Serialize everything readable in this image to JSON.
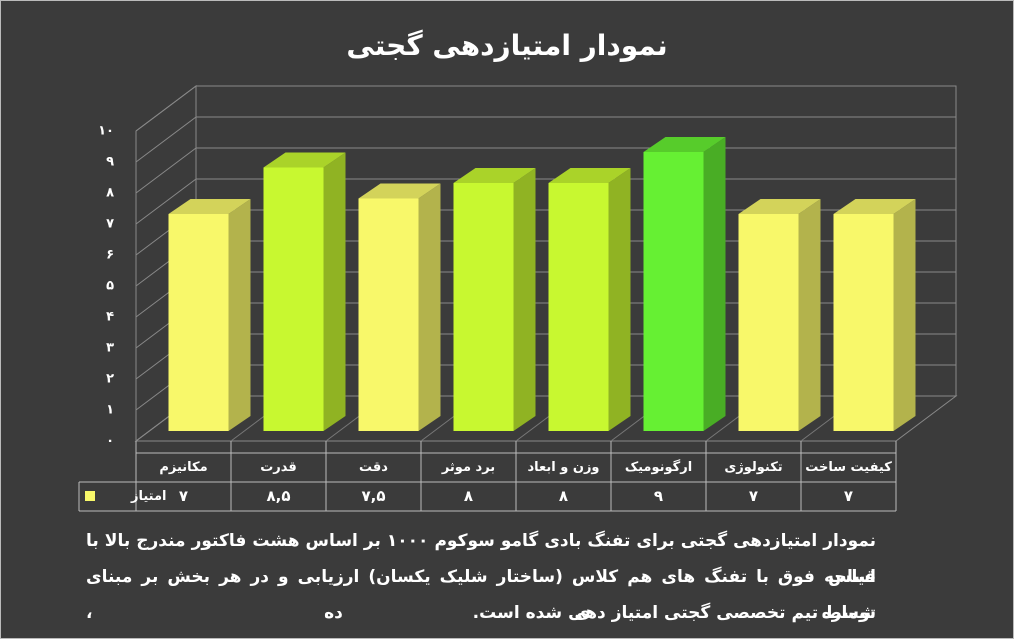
{
  "chart_data": {
    "type": "bar3d",
    "title": "نمودار امتیازدهی گجتی",
    "categories": [
      "مکانیزم",
      "قدرت",
      "دقت",
      "برد موثر",
      "وزن و ابعاد",
      "ارگونومیک",
      "تکنولوژی",
      "کیفیت ساخت"
    ],
    "series": [
      {
        "name": "امتیاز",
        "color": "#f8f86a",
        "values": [
          7,
          8.5,
          7.5,
          8,
          8,
          9,
          7,
          7
        ],
        "value_labels": [
          "۷",
          "۸,۵",
          "۷,۵",
          "۸",
          "۸",
          "۹",
          "۷",
          "۷"
        ]
      }
    ],
    "bar_colors": [
      "#f8f86a",
      "#c8f830",
      "#f8f86a",
      "#c8f830",
      "#c8f830",
      "#66f033",
      "#f8f86a",
      "#f8f86a"
    ],
    "ylim": [
      0,
      10
    ],
    "yticks": [
      {
        "value": 0,
        "label": "۰"
      },
      {
        "value": 1,
        "label": "۱"
      },
      {
        "value": 2,
        "label": "۲"
      },
      {
        "value": 3,
        "label": "۳"
      },
      {
        "value": 4,
        "label": "۴"
      },
      {
        "value": 5,
        "label": "۵"
      },
      {
        "value": 6,
        "label": "۶"
      },
      {
        "value": 7,
        "label": "۷"
      },
      {
        "value": 8,
        "label": "۸"
      },
      {
        "value": 9,
        "label": "۹"
      },
      {
        "value": 10,
        "label": "۱۰"
      }
    ],
    "grid": true,
    "caption": [
      "نمودار امتیازدهی گجتی برای تفنگ بادی گامو سوکوم ۱۰۰۰ بر اساس هشت فاکتور مندرج بالا با قیاس",
      "اسلحه فوق با تفنگ های هم کلاس (ساختار شلیک یکسان) ارزیابی و در هر بخش بر مبنای شماره ی ده ،",
      "توسط تیم تخصصی گجتی امتیاز دهی شده است."
    ]
  }
}
